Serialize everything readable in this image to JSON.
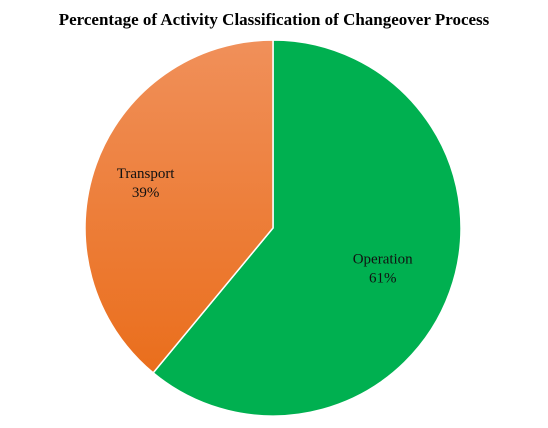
{
  "chart_data": {
    "type": "pie",
    "title": "Percentage of Activity Classification of Changeover Process",
    "slices": [
      {
        "label": "Operation",
        "value": 61,
        "value_label": "61%",
        "color": "#00b050"
      },
      {
        "label": "Transport",
        "value": 39,
        "value_label": "39%",
        "color": "#f07a2a"
      }
    ],
    "start_angle": "12 o'clock",
    "direction": "clockwise",
    "legend": "none"
  }
}
